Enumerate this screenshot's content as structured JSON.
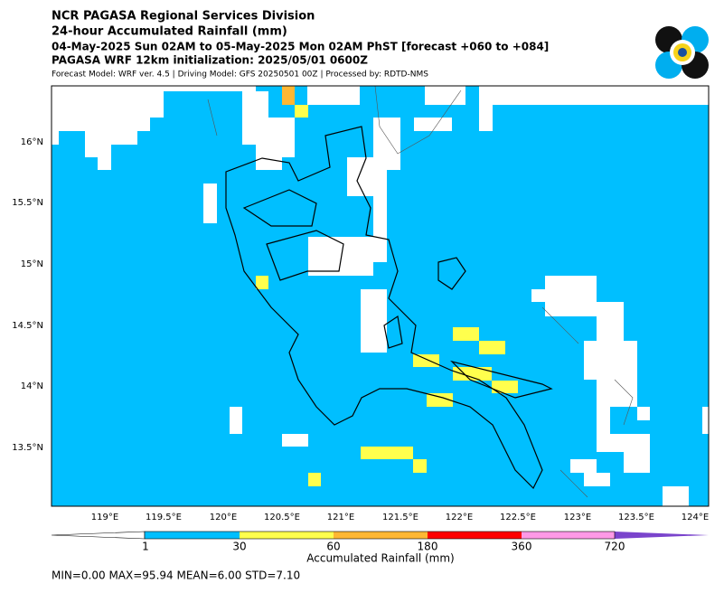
{
  "header": {
    "title": "NCR PAGASA Regional Services Division",
    "subtitle": "24-hour Accumulated Rainfall (mm)",
    "period": "04-May-2025 Sun 02AM to 05-May-2025 Mon 02AM PhST [forecast +060 to +084]",
    "init": "PAGASA WRF 12km initialization: 2025/05/01 0600Z",
    "model": "Forecast Model: WRF ver. 4.5 | Driving Model: GFS 20250501 00Z | Processed by: RDTD-NMS"
  },
  "map": {
    "lon_labels": [
      "119°E",
      "119.5°E",
      "120°E",
      "120.5°E",
      "121°E",
      "121.5°E",
      "122°E",
      "122.5°E",
      "123°E",
      "123.5°E",
      "124°E"
    ],
    "lat_labels": [
      "16°N",
      "15.5°N",
      "15°N",
      "14.5°N",
      "14°N",
      "13.5°N"
    ]
  },
  "colorbar": {
    "ticks": [
      "1",
      "30",
      "60",
      "180",
      "360",
      "720"
    ],
    "label": "Accumulated Rainfall (mm)"
  },
  "stats": "MIN=0.00   MAX=95.94   MEAN=6.00   STD=7.10"
}
